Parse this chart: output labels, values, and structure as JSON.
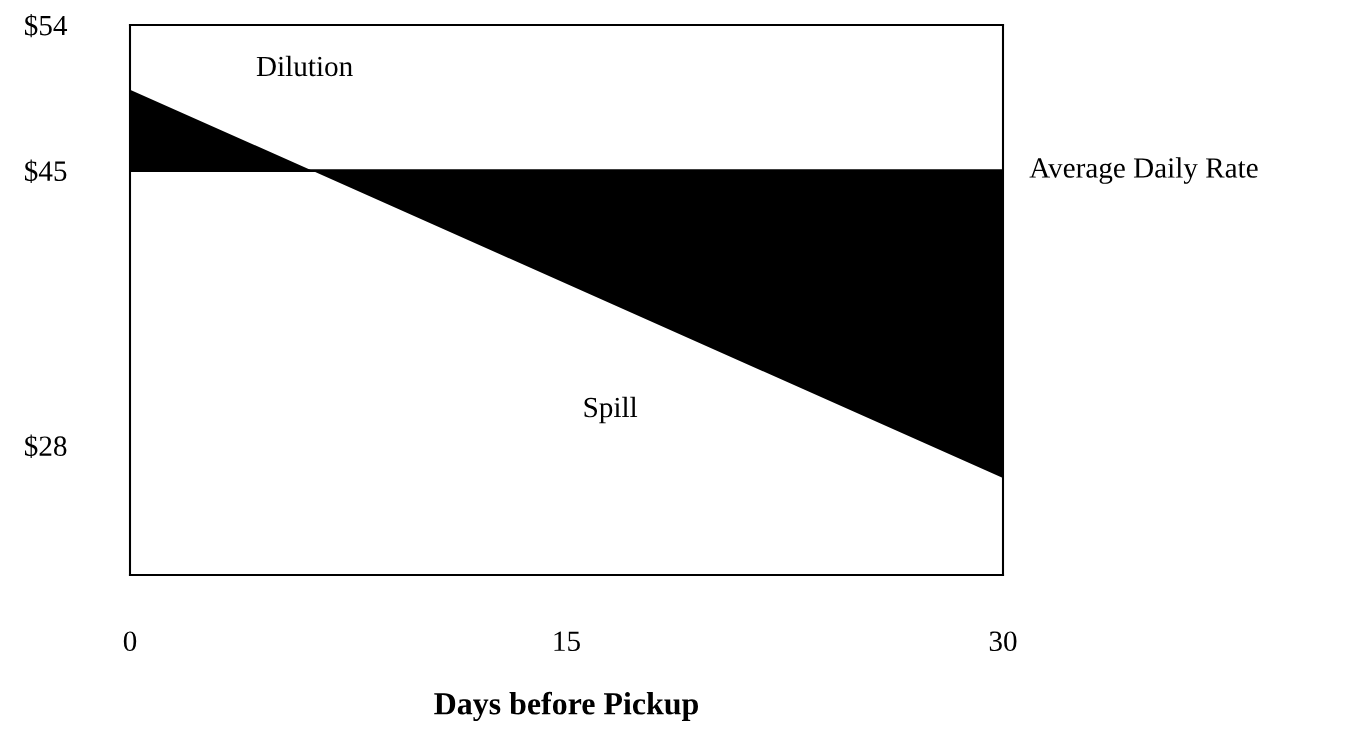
{
  "chart_data": {
    "type": "area",
    "xlabel": "Days before Pickup",
    "x": [
      0,
      30
    ],
    "series": [
      {
        "color": "#000000",
        "values": [
          50,
          26
        ]
      }
    ],
    "xlim": [
      0,
      30
    ],
    "xticks": [
      0,
      15,
      30
    ],
    "ylim": [
      20,
      54
    ],
    "yticks": [
      {
        "value": 28,
        "label": "$28"
      },
      {
        "value": 45,
        "label": "$45"
      },
      {
        "value": 54,
        "label": "$54"
      }
    ],
    "ref_lines": [
      {
        "axis": "y",
        "value": 45,
        "label": "Average Daily Rate",
        "color": "#000000"
      }
    ],
    "annotations": [
      "Dilution",
      "Spill"
    ],
    "grid": false,
    "legend": false
  }
}
